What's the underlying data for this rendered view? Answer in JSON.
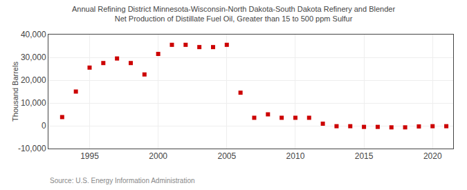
{
  "chart_data": {
    "type": "scatter",
    "title": "Annual Refining District Minnesota-Wisconsin-North Dakota-South Dakota Refinery and Blender\nNet Production of Distillate Fuel Oil, Greater than 15 to 500 ppm Sulfur",
    "ylabel": "Thousand Barrels",
    "annotations": [
      "Source: U.S. Energy Information Administration"
    ],
    "x": [
      1993,
      1994,
      1995,
      1996,
      1997,
      1998,
      1999,
      2000,
      2001,
      2002,
      2003,
      2004,
      2005,
      2006,
      2007,
      2008,
      2009,
      2010,
      2011,
      2012,
      2013,
      2014,
      2015,
      2016,
      2017,
      2018,
      2019,
      2020,
      2021
    ],
    "values": [
      3800,
      15000,
      25500,
      27500,
      29500,
      27500,
      22500,
      31500,
      35500,
      35500,
      34500,
      34500,
      35500,
      14500,
      3500,
      5000,
      3500,
      3500,
      3500,
      900,
      -200,
      -200,
      -500,
      -500,
      -700,
      -700,
      -300,
      -200,
      -200
    ],
    "color": "#cc0000",
    "marker": "square",
    "xlim": [
      1992,
      2021.5
    ],
    "ylim": [
      -10000,
      40000
    ],
    "xticks": [
      1995,
      2000,
      2005,
      2010,
      2015,
      2020
    ],
    "yticks": [
      {
        "value": -10000,
        "label": "-10,000"
      },
      0,
      {
        "value": 10000,
        "label": "10,000"
      },
      {
        "value": 20000,
        "label": "20,000"
      },
      {
        "value": 30000,
        "label": "30,000"
      },
      {
        "value": 40000,
        "label": "40,000"
      }
    ],
    "grid": true
  }
}
